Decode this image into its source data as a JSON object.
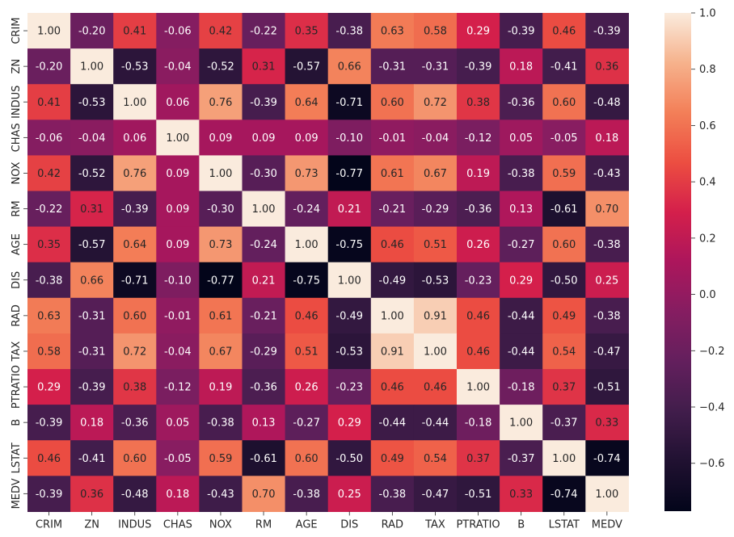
{
  "chart_data": {
    "type": "heatmap",
    "title": "",
    "xlabel": "",
    "ylabel": "",
    "x_labels": [
      "CRIM",
      "ZN",
      "INDUS",
      "CHAS",
      "NOX",
      "RM",
      "AGE",
      "DIS",
      "RAD",
      "TAX",
      "PTRATIO",
      "B",
      "LSTAT",
      "MEDV"
    ],
    "y_labels": [
      "CRIM",
      "ZN",
      "INDUS",
      "CHAS",
      "NOX",
      "RM",
      "AGE",
      "DIS",
      "RAD",
      "TAX",
      "PTRATIO",
      "B",
      "LSTAT",
      "MEDV"
    ],
    "values": [
      [
        1.0,
        -0.2,
        0.41,
        -0.06,
        0.42,
        -0.22,
        0.35,
        -0.38,
        0.63,
        0.58,
        0.29,
        -0.39,
        0.46,
        -0.39
      ],
      [
        -0.2,
        1.0,
        -0.53,
        -0.04,
        -0.52,
        0.31,
        -0.57,
        0.66,
        -0.31,
        -0.31,
        -0.39,
        0.18,
        -0.41,
        0.36
      ],
      [
        0.41,
        -0.53,
        1.0,
        0.06,
        0.76,
        -0.39,
        0.64,
        -0.71,
        0.6,
        0.72,
        0.38,
        -0.36,
        0.6,
        -0.48
      ],
      [
        -0.06,
        -0.04,
        0.06,
        1.0,
        0.09,
        0.09,
        0.09,
        -0.1,
        -0.01,
        -0.04,
        -0.12,
        0.05,
        -0.05,
        0.18
      ],
      [
        0.42,
        -0.52,
        0.76,
        0.09,
        1.0,
        -0.3,
        0.73,
        -0.77,
        0.61,
        0.67,
        0.19,
        -0.38,
        0.59,
        -0.43
      ],
      [
        -0.22,
        0.31,
        -0.39,
        0.09,
        -0.3,
        1.0,
        -0.24,
        0.21,
        -0.21,
        -0.29,
        -0.36,
        0.13,
        -0.61,
        0.7
      ],
      [
        0.35,
        -0.57,
        0.64,
        0.09,
        0.73,
        -0.24,
        1.0,
        -0.75,
        0.46,
        0.51,
        0.26,
        -0.27,
        0.6,
        -0.38
      ],
      [
        -0.38,
        0.66,
        -0.71,
        -0.1,
        -0.77,
        0.21,
        -0.75,
        1.0,
        -0.49,
        -0.53,
        -0.23,
        0.29,
        -0.5,
        0.25
      ],
      [
        0.63,
        -0.31,
        0.6,
        -0.01,
        0.61,
        -0.21,
        0.46,
        -0.49,
        1.0,
        0.91,
        0.46,
        -0.44,
        0.49,
        -0.38
      ],
      [
        0.58,
        -0.31,
        0.72,
        -0.04,
        0.67,
        -0.29,
        0.51,
        -0.53,
        0.91,
        1.0,
        0.46,
        -0.44,
        0.54,
        -0.47
      ],
      [
        0.29,
        -0.39,
        0.38,
        -0.12,
        0.19,
        -0.36,
        0.26,
        -0.23,
        0.46,
        0.46,
        1.0,
        -0.18,
        0.37,
        -0.51
      ],
      [
        -0.39,
        0.18,
        -0.36,
        0.05,
        -0.38,
        0.13,
        -0.27,
        0.29,
        -0.44,
        -0.44,
        -0.18,
        1.0,
        -0.37,
        0.33
      ],
      [
        0.46,
        -0.41,
        0.6,
        -0.05,
        0.59,
        -0.61,
        0.6,
        -0.5,
        0.49,
        0.54,
        0.37,
        -0.37,
        1.0,
        -0.74
      ],
      [
        -0.39,
        0.36,
        -0.48,
        0.18,
        -0.43,
        0.7,
        -0.38,
        0.25,
        -0.38,
        -0.47,
        -0.51,
        0.33,
        -0.74,
        1.0
      ]
    ],
    "colorbar": {
      "vmin": -0.77,
      "vmax": 1.0,
      "ticks": [
        1.0,
        0.8,
        0.6,
        0.4,
        0.2,
        0.0,
        -0.2,
        -0.4,
        -0.6
      ],
      "tick_labels": [
        "1.0",
        "0.8",
        "0.6",
        "0.4",
        "0.2",
        "0.0",
        "−0.2",
        "−0.4",
        "−0.6"
      ],
      "colormap": "rocket"
    },
    "annotation_format": "0.00",
    "grid": false,
    "legend": "colorbar-right"
  }
}
